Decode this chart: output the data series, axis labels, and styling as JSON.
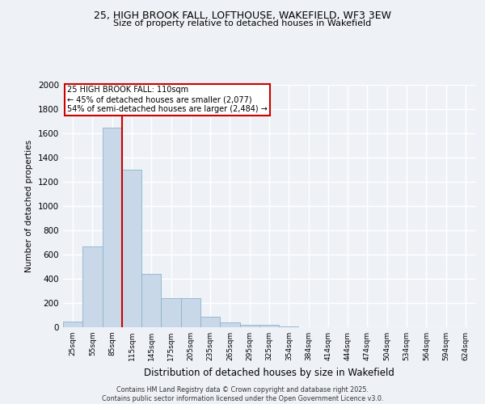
{
  "title_line1": "25, HIGH BROOK FALL, LOFTHOUSE, WAKEFIELD, WF3 3EW",
  "title_line2": "Size of property relative to detached houses in Wakefield",
  "xlabel": "Distribution of detached houses by size in Wakefield",
  "ylabel": "Number of detached properties",
  "categories": [
    "25sqm",
    "55sqm",
    "85sqm",
    "115sqm",
    "145sqm",
    "175sqm",
    "205sqm",
    "235sqm",
    "265sqm",
    "295sqm",
    "325sqm",
    "354sqm",
    "384sqm",
    "414sqm",
    "444sqm",
    "474sqm",
    "504sqm",
    "534sqm",
    "564sqm",
    "594sqm",
    "624sqm"
  ],
  "values": [
    50,
    670,
    1650,
    1300,
    440,
    240,
    240,
    85,
    40,
    20,
    20,
    10,
    0,
    0,
    0,
    0,
    0,
    0,
    0,
    0,
    0
  ],
  "bar_color": "#c8d8e8",
  "bar_edge_color": "#8ab4cc",
  "vline_color": "#cc0000",
  "annotation_text": "25 HIGH BROOK FALL: 110sqm\n← 45% of detached houses are smaller (2,077)\n54% of semi-detached houses are larger (2,484) →",
  "annotation_box_color": "#ffffff",
  "annotation_box_edge_color": "#cc0000",
  "ylim": [
    0,
    2000
  ],
  "yticks": [
    0,
    200,
    400,
    600,
    800,
    1000,
    1200,
    1400,
    1600,
    1800,
    2000
  ],
  "footer_line1": "Contains HM Land Registry data © Crown copyright and database right 2025.",
  "footer_line2": "Contains public sector information licensed under the Open Government Licence v3.0.",
  "background_color": "#eef2f7",
  "grid_color": "#ffffff"
}
